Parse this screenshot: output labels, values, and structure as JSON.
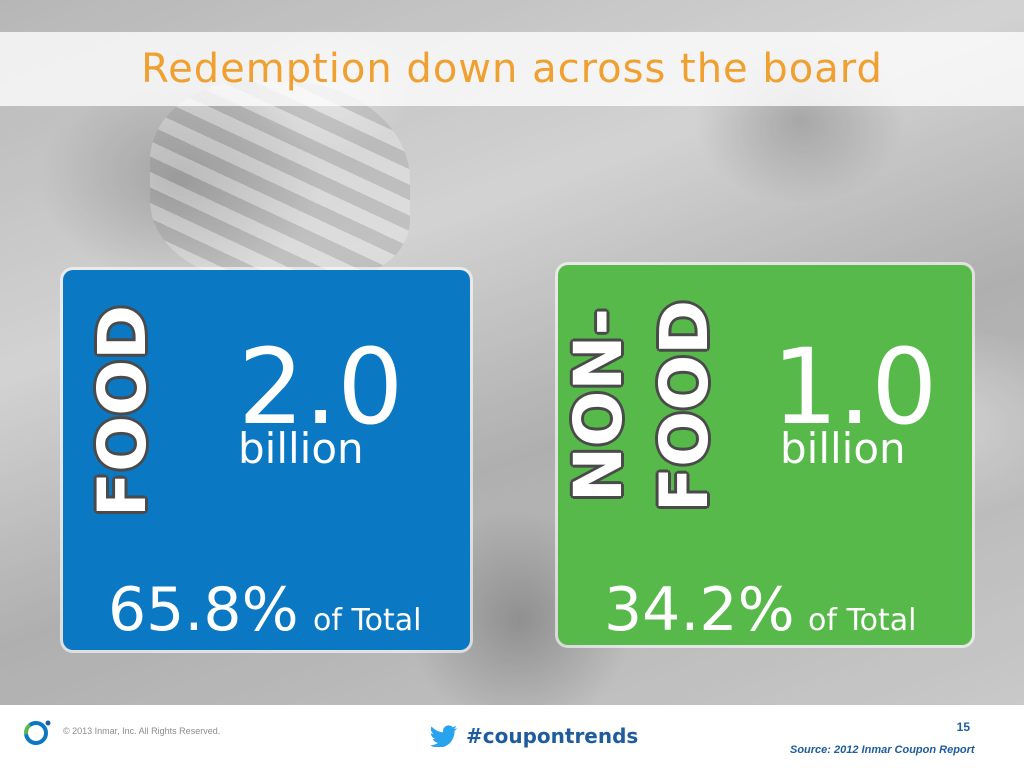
{
  "slide": {
    "title": "Redemption down across the board",
    "page_number": "15"
  },
  "food_card": {
    "label": "FOOD",
    "value": "2.0",
    "unit": "billion",
    "percent": "65.8%",
    "percent_suffix": "of Total",
    "color": "#0a78c2"
  },
  "nonfood_card": {
    "label_line1": "NON-",
    "label_line2": "FOOD",
    "value": "1.0",
    "unit": "billion",
    "percent": "34.2%",
    "percent_suffix": "of Total",
    "color": "#56b94a"
  },
  "footer": {
    "copyright": "© 2013 Inmar, Inc. All Rights Reserved.",
    "hashtag": "#coupontrends",
    "source": "Source: 2012 Inmar Coupon Report",
    "logo_icon": "inmar-ring-logo-icon",
    "twitter_icon": "twitter-bird-icon",
    "accent_color": "#1e5c9e"
  },
  "colors": {
    "title": "#f0a030"
  }
}
